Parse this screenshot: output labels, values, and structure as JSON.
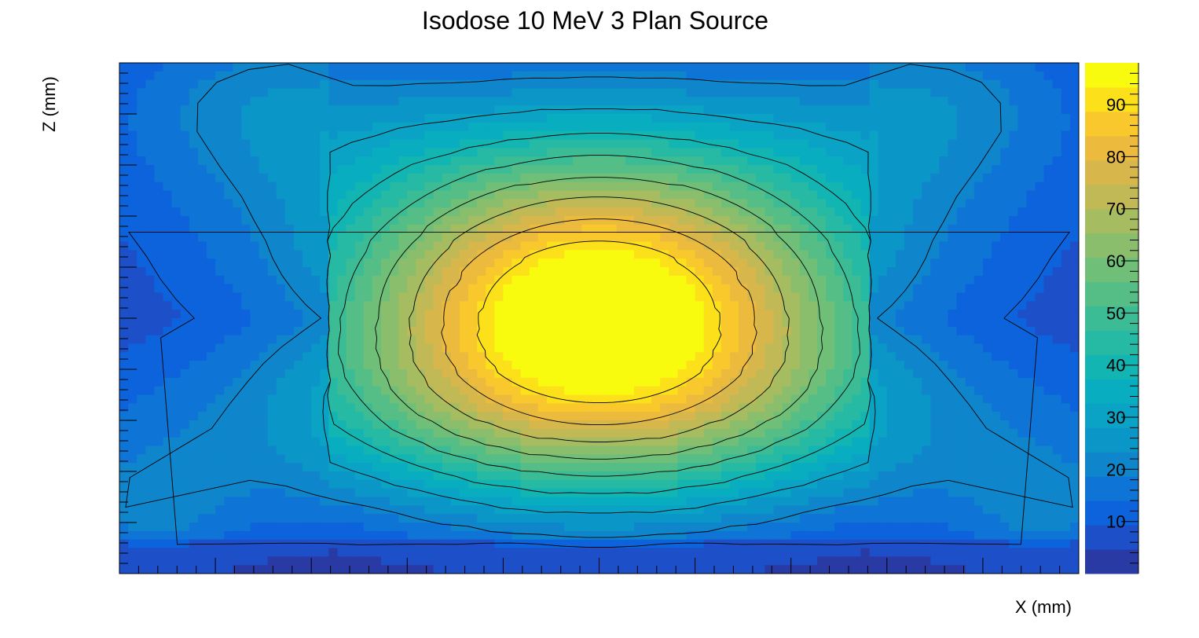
{
  "chart_data": {
    "type": "heatmap",
    "title": "Isodose 10 MeV 3 Plan Source",
    "xlabel": "X (mm)",
    "ylabel": "Z (mm)",
    "colorbar": {
      "ticks": [
        10,
        20,
        30,
        40,
        50,
        60,
        70,
        80,
        90
      ],
      "range": [
        0,
        98
      ],
      "levels": 20
    },
    "contour_levels": [
      10,
      20,
      30,
      40,
      50,
      60,
      70,
      80,
      90
    ],
    "hotspot_max": 98,
    "grid": false,
    "colors": [
      "#2a3aa5",
      "#1c4fc8",
      "#0d63dc",
      "#0e74d6",
      "#0f86cc",
      "#0b96c8",
      "#0aa3c6",
      "#08adc0",
      "#12b5b2",
      "#26b9a3",
      "#3cbc94",
      "#55be86",
      "#70bf78",
      "#8bbe6c",
      "#a6bc60",
      "#c0b956",
      "#d7b74b",
      "#ecbb3d",
      "#f8c82d",
      "#fbe01a",
      "#f9fb0e"
    ]
  }
}
